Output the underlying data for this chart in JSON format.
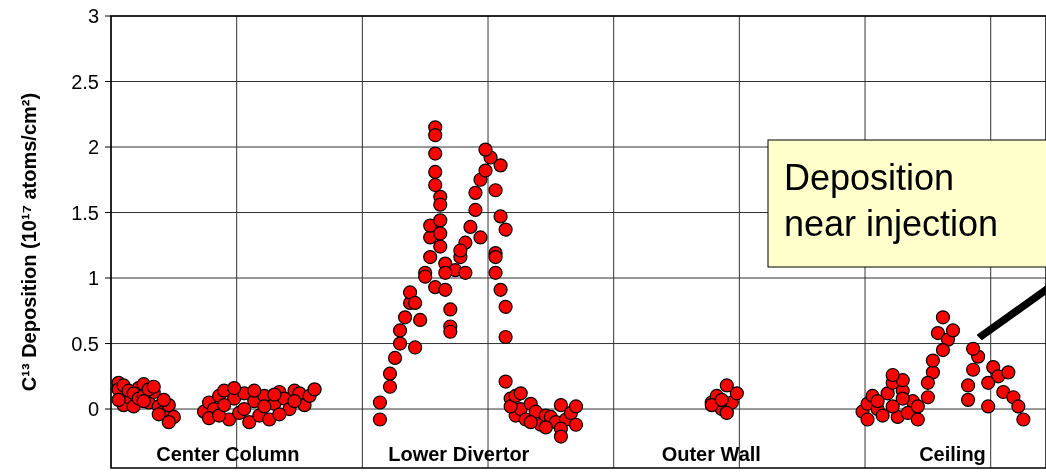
{
  "chart_data": {
    "type": "scatter",
    "ylabel": "C¹³ Deposition (10¹⁷ atoms/cm²)",
    "ylim": [
      -0.45,
      3
    ],
    "yticks": [
      0,
      0.5,
      1,
      1.5,
      2,
      2.5,
      3
    ],
    "tick_labels": "y",
    "grid": true,
    "marker": "circle",
    "annotations": [
      "Center Column",
      "Lower Divertor",
      "Outer Wall",
      "Ceiling",
      "Deposition\nnear injection"
    ],
    "categories": [
      null,
      null,
      null,
      null,
      null,
      null,
      null,
      null,
      null,
      null,
      null,
      null,
      null,
      null,
      null,
      null,
      null,
      null,
      null,
      null,
      null,
      null,
      null,
      null,
      null,
      null,
      null,
      null,
      null,
      null,
      null,
      null,
      null,
      null,
      null,
      null,
      null,
      null,
      null,
      null,
      null,
      null,
      null,
      null,
      null,
      null,
      null,
      null,
      null,
      null,
      null,
      null,
      null,
      null,
      null,
      null,
      null,
      null,
      null,
      null,
      null,
      null,
      null,
      null,
      null,
      null,
      null,
      null,
      null,
      null,
      null,
      null,
      null,
      null,
      null,
      null,
      null,
      null,
      null,
      null,
      null,
      null,
      null,
      null,
      null,
      null,
      null,
      null,
      null,
      null,
      null,
      null,
      null,
      null,
      null,
      null,
      null,
      null,
      null,
      null,
      null,
      null,
      null,
      null,
      null,
      null,
      null,
      null,
      null,
      null,
      null,
      null,
      null,
      null,
      null,
      null,
      null,
      null,
      null,
      null,
      null,
      null,
      null,
      null,
      null,
      null,
      null,
      null,
      null,
      null,
      null,
      null,
      null,
      null,
      null,
      null,
      null,
      null,
      null,
      null,
      null,
      null,
      null,
      null,
      null,
      null,
      null,
      null,
      null,
      null,
      null,
      null,
      null,
      null,
      null,
      null,
      null,
      null,
      null,
      null,
      null,
      null,
      null,
      null,
      null,
      null,
      null,
      null,
      null,
      null,
      null,
      null,
      null,
      null,
      null,
      null,
      null,
      null,
      null,
      null,
      null,
      null,
      null,
      null,
      null,
      null
    ],
    "series": [
      {
        "color": "#ff0000",
        "values": [
          null,
          0.2,
          0.03,
          0.09,
          0.02,
          0.16,
          0.19,
          0.05,
          0.13,
          0.02,
          -0.02,
          0.03,
          -0.06,
          null,
          null,
          null,
          null,
          null,
          -0.02,
          0.05,
          0.0,
          0.1,
          0.14,
          -0.08,
          0.08,
          -0.03,
          0.12,
          -0.1,
          0.06,
          -0.05,
          0.1,
          -0.08,
          0.04,
          0.13,
          0.08,
          0.0,
          0.14,
          0.12,
          0.03,
          0.1,
          0.15,
          null,
          null,
          null,
          null,
          null,
          null,
          null,
          null,
          null,
          null,
          null,
          null,
          -0.08,
          null,
          0.17,
          0.39,
          0.5,
          0.7,
          0.81,
          0.47,
          0.68,
          1.04,
          1.16,
          0.93,
          1.62,
          1.11,
          0.76,
          1.06,
          1.16,
          1.27,
          1.39,
          1.52,
          1.75,
          1.82,
          1.92,
          1.19,
          1.86,
          1.37,
          0.08,
          -0.05,
          0.0,
          -0.08,
          0.04,
          -0.02,
          -0.12,
          -0.05,
          -0.06,
          -0.1,
          0.03,
          -0.08,
          -0.03,
          -0.12,
          null,
          null,
          null,
          null,
          null,
          null,
          null,
          null,
          null,
          null,
          null,
          null,
          null,
          null,
          null,
          null,
          null,
          null,
          null,
          null,
          null,
          null,
          null,
          null,
          null,
          null,
          0.05,
          0.1,
          0.0,
          -0.02,
          0.05,
          0.12,
          null,
          null,
          null,
          null,
          null,
          null,
          null,
          null,
          null,
          null,
          null,
          null,
          null,
          null,
          null,
          null,
          null,
          null,
          null,
          null,
          null,
          null,
          null,
          null,
          -0.02,
          0.04,
          0.1,
          0.0,
          -0.05,
          0.12,
          0.2,
          -0.06,
          0.14,
          -0.03,
          0.06,
          -0.08,
          null,
          0.09,
          0.28,
          0.58,
          0.7,
          0.53,
          0.6,
          null,
          null,
          0.18,
          0.3,
          0.4,
          null,
          0.02,
          0.32,
          0.25,
          0.13,
          0.28,
          0.09,
          0.02,
          -0.08,
          null,
          null,
          null,
          null
        ]
      },
      {
        "color": "#ff0000",
        "values": [
          null,
          0.15,
          0.18,
          0.14,
          0.12,
          0.08,
          0.1,
          0.15,
          0.17,
          -0.04,
          0.07,
          -0.1,
          null,
          null,
          null,
          null,
          null,
          null,
          null,
          -0.07,
          null,
          -0.05,
          0.03,
          null,
          0.16,
          null,
          0.0,
          null,
          0.14,
          null,
          0.02,
          null,
          0.11,
          -0.04,
          null,
          null,
          0.06,
          null,
          null,
          null,
          null,
          null,
          null,
          null,
          null,
          null,
          null,
          null,
          null,
          null,
          null,
          null,
          null,
          0.05,
          null,
          0.27,
          null,
          0.6,
          null,
          0.89,
          0.81,
          null,
          1.01,
          1.31,
          2.15,
          1.56,
          0.91,
          0.63,
          null,
          1.21,
          1.04,
          null,
          1.65,
          1.31,
          1.98,
          null,
          1.16,
          1.47,
          0.78,
          0.02,
          0.1,
          0.12,
          null,
          -0.1,
          null,
          null,
          -0.14,
          null,
          null,
          -0.15,
          null,
          null,
          0.02,
          null,
          null,
          null,
          null,
          null,
          null,
          null,
          null,
          null,
          null,
          null,
          null,
          null,
          null,
          null,
          null,
          null,
          null,
          null,
          null,
          null,
          null,
          null,
          null,
          null,
          null,
          0.03,
          null,
          0.07,
          -0.03,
          null,
          null,
          null,
          null,
          null,
          null,
          null,
          null,
          null,
          null,
          null,
          null,
          null,
          null,
          null,
          null,
          null,
          null,
          null,
          null,
          null,
          null,
          null,
          null,
          null,
          null,
          null,
          -0.08,
          null,
          0.06,
          null,
          null,
          0.02,
          null,
          0.22,
          null,
          null,
          0.02,
          null,
          0.2,
          0.37,
          null,
          0.45,
          null,
          null,
          null,
          null,
          0.07,
          0.46,
          null,
          null,
          0.2,
          null,
          null,
          null,
          null,
          null,
          null,
          null,
          null,
          null,
          null,
          null
        ]
      },
      {
        "color": "#ff0000",
        "values": [
          null,
          0.07,
          null,
          null,
          null,
          null,
          0.06,
          null,
          null,
          null,
          null,
          null,
          null,
          null,
          null,
          null,
          null,
          null,
          null,
          null,
          null,
          null,
          null,
          null,
          null,
          null,
          null,
          null,
          null,
          null,
          null,
          null,
          null,
          null,
          null,
          null,
          null,
          null,
          null,
          null,
          null,
          null,
          null,
          null,
          null,
          null,
          null,
          null,
          null,
          null,
          null,
          null,
          null,
          null,
          null,
          null,
          null,
          null,
          null,
          null,
          null,
          null,
          null,
          1.4,
          2.09,
          1.44,
          1.04,
          0.59,
          null,
          null,
          null,
          null,
          null,
          null,
          null,
          null,
          1.04,
          0.91,
          0.55,
          null,
          null,
          null,
          null,
          null,
          null,
          null,
          null,
          null,
          null,
          -0.21,
          null,
          null,
          null,
          null,
          null,
          null,
          null,
          null,
          null,
          null,
          null,
          null,
          null,
          null,
          null,
          null,
          null,
          null,
          null,
          null,
          null,
          null,
          null,
          null,
          null,
          null,
          null,
          null,
          null,
          null,
          null,
          null,
          0.18,
          null,
          null,
          null,
          null,
          null,
          null,
          null,
          null,
          null,
          null,
          null,
          null,
          null,
          null,
          null,
          null,
          null,
          null,
          null,
          null,
          null,
          null,
          null,
          null,
          null,
          null,
          null,
          null,
          null,
          null,
          null,
          null,
          0.26,
          null,
          0.08,
          null,
          null,
          null,
          null,
          null,
          null,
          null,
          null,
          null,
          null,
          null,
          null,
          null,
          null,
          null,
          null,
          null,
          null,
          null,
          null,
          null,
          null,
          null,
          null,
          null,
          null,
          null,
          null
        ]
      },
      {
        "color": "#ff0000",
        "values": [
          null,
          null,
          null,
          null,
          null,
          null,
          null,
          null,
          null,
          null,
          null,
          null,
          null,
          null,
          null,
          null,
          null,
          null,
          null,
          null,
          null,
          null,
          null,
          null,
          null,
          null,
          null,
          null,
          null,
          null,
          null,
          null,
          null,
          null,
          null,
          null,
          null,
          null,
          null,
          null,
          null,
          null,
          null,
          null,
          null,
          null,
          null,
          null,
          null,
          null,
          null,
          null,
          null,
          null,
          null,
          null,
          null,
          null,
          null,
          null,
          null,
          null,
          null,
          null,
          1.95,
          1.34,
          null,
          null,
          null,
          null,
          null,
          null,
          null,
          null,
          null,
          null,
          1.67,
          null,
          0.21,
          null,
          null,
          null,
          null,
          null,
          null,
          null,
          null,
          null,
          null,
          null,
          null,
          null,
          null,
          null,
          null,
          null,
          null,
          null,
          null,
          null,
          null,
          null,
          null,
          null,
          null,
          null,
          null,
          null,
          null,
          null,
          null,
          null,
          null,
          null,
          null,
          null,
          null,
          null,
          null,
          null,
          null,
          null,
          null,
          null,
          null,
          null,
          null,
          null,
          null,
          null,
          null,
          null,
          null,
          null,
          null,
          null,
          null,
          null,
          null,
          null,
          null,
          null,
          null,
          null,
          null,
          null,
          null,
          null,
          null,
          null,
          null,
          null,
          null,
          null,
          null,
          null,
          null,
          null,
          null,
          null,
          null,
          null,
          null,
          null,
          null,
          null,
          null,
          null,
          null,
          null,
          null,
          null,
          null,
          null,
          null,
          null,
          null,
          null,
          null,
          null,
          null,
          null,
          null,
          null,
          null,
          null
        ]
      },
      {
        "color": "#ff0000",
        "values": [
          null,
          null,
          null,
          null,
          null,
          null,
          null,
          null,
          null,
          null,
          null,
          null,
          null,
          null,
          null,
          null,
          null,
          null,
          null,
          null,
          null,
          null,
          null,
          null,
          null,
          null,
          null,
          null,
          null,
          null,
          null,
          null,
          null,
          null,
          null,
          null,
          null,
          null,
          null,
          null,
          null,
          null,
          null,
          null,
          null,
          null,
          null,
          null,
          null,
          null,
          null,
          null,
          null,
          null,
          null,
          null,
          null,
          null,
          null,
          null,
          null,
          null,
          null,
          null,
          1.81,
          1.24,
          null,
          null,
          null,
          null,
          null,
          null,
          null,
          null,
          null,
          null,
          null,
          null,
          null,
          null,
          null,
          null,
          null,
          null,
          null,
          null,
          null,
          null,
          null,
          null,
          null,
          null,
          null,
          null,
          null,
          null,
          null,
          null,
          null,
          null,
          null,
          null,
          null,
          null,
          null,
          null,
          null,
          null,
          null,
          null,
          null,
          null,
          null,
          null,
          null,
          null,
          null,
          null,
          null,
          null,
          null,
          null,
          null,
          null,
          null,
          null,
          null,
          null,
          null,
          null,
          null,
          null,
          null,
          null,
          null,
          null,
          null,
          null,
          null,
          null,
          null,
          null,
          null,
          null,
          null,
          null,
          null,
          null,
          null,
          null,
          null,
          null,
          null,
          null,
          null,
          null,
          null,
          null,
          null,
          null,
          null,
          null,
          null,
          null,
          null,
          null,
          null,
          null,
          null,
          null,
          null,
          null,
          null,
          null,
          null,
          null,
          null,
          null,
          null,
          null,
          null,
          null,
          null,
          null,
          null,
          null
        ]
      },
      {
        "color": "#ff0000",
        "values": [
          null,
          null,
          null,
          null,
          null,
          null,
          null,
          null,
          null,
          null,
          null,
          null,
          null,
          null,
          null,
          null,
          null,
          null,
          null,
          null,
          null,
          null,
          null,
          null,
          null,
          null,
          null,
          null,
          null,
          null,
          null,
          null,
          null,
          null,
          null,
          null,
          null,
          null,
          null,
          null,
          null,
          null,
          null,
          null,
          null,
          null,
          null,
          null,
          null,
          null,
          null,
          null,
          null,
          null,
          null,
          null,
          null,
          null,
          null,
          null,
          null,
          null,
          null,
          null,
          1.71,
          null,
          null,
          null,
          null,
          null,
          null,
          null,
          null,
          null,
          null,
          null,
          null,
          null,
          null,
          null,
          null,
          null,
          null,
          null,
          null,
          null,
          null,
          null,
          null,
          null,
          null,
          null,
          null,
          null,
          null,
          null,
          null,
          null,
          null,
          null,
          null,
          null,
          null,
          null,
          null,
          null,
          null,
          null,
          null,
          null,
          null,
          null,
          null,
          null,
          null,
          null,
          null,
          null,
          null,
          null,
          null,
          null,
          null,
          null,
          null,
          null,
          null,
          null,
          null,
          null,
          null,
          null,
          null,
          null,
          null,
          null,
          null,
          null,
          null,
          null,
          null,
          null,
          null,
          null,
          null,
          null,
          null,
          null,
          null,
          null,
          null,
          null,
          null,
          null,
          null,
          null,
          null,
          null,
          null,
          null,
          null,
          null,
          null,
          null,
          null,
          null,
          null,
          null,
          null,
          null,
          null,
          null,
          null,
          null,
          null,
          null,
          null,
          null,
          null,
          null,
          null,
          null,
          null,
          null,
          null,
          null
        ]
      }
    ]
  }
}
